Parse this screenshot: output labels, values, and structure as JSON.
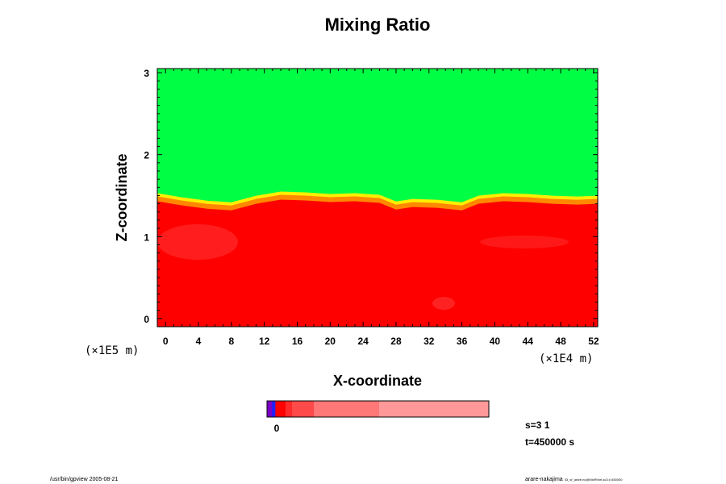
{
  "chart_data": {
    "type": "heatmap",
    "title": "Mixing Ratio",
    "xlabel": "X-coordinate",
    "ylabel": "Z-coordinate",
    "x_scale_note": "(×1E4 m)",
    "y_scale_note": "(×1E5 m)",
    "xlim": [
      -1,
      52.5
    ],
    "ylim": [
      -0.1,
      3.05
    ],
    "x_ticks": [
      0,
      4,
      8,
      12,
      16,
      20,
      24,
      28,
      32,
      36,
      40,
      44,
      48,
      52
    ],
    "y_ticks": [
      0,
      1,
      2,
      3
    ],
    "interface_profile": {
      "x": [
        -1,
        2,
        5,
        8,
        11,
        14,
        17,
        20,
        23,
        26,
        28,
        30,
        33,
        36,
        38,
        41,
        44,
        47,
        50,
        52.5
      ],
      "z": [
        1.47,
        1.42,
        1.38,
        1.36,
        1.44,
        1.49,
        1.48,
        1.46,
        1.47,
        1.45,
        1.37,
        1.4,
        1.39,
        1.36,
        1.44,
        1.47,
        1.46,
        1.44,
        1.43,
        1.44
      ]
    },
    "regions": [
      {
        "name": "upper",
        "color": "#00ff44"
      },
      {
        "name": "lower",
        "color": "#ff0000"
      }
    ],
    "colorbar": {
      "label": "0",
      "colors": [
        "#7a00c8",
        "#2020ff",
        "#ff0000",
        "#ff0000",
        "#ff2a2a",
        "#ff4a4a",
        "#ff7777",
        "#ff9898"
      ],
      "widths": [
        6,
        4,
        7,
        5,
        8,
        26,
        78,
        131
      ]
    }
  },
  "annotations": {
    "s_value": "s=3 1",
    "t_value": "t=450000 s"
  },
  "footer": {
    "left": "/usr/bin/gpview 2005-08-21",
    "right_main": "arare-nakajima",
    "right_sub": "03_sf_arare,nc@MixRtVel,sc3,t=450000"
  }
}
